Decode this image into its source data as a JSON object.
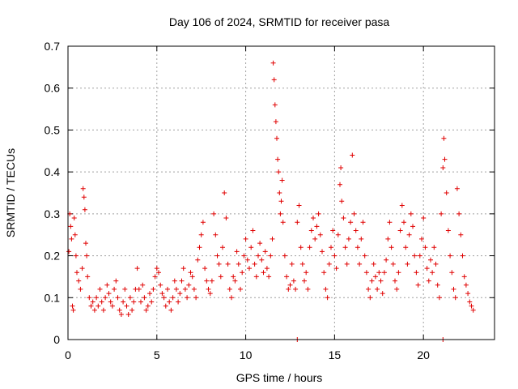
{
  "chart_data": {
    "type": "scatter",
    "title": "Day 106 of 2024, SRMTID for receiver pasa",
    "xlabel": "GPS time / hours",
    "ylabel": "SRMTID / TECUs",
    "xlim": [
      0,
      24
    ],
    "ylim": [
      0,
      0.7
    ],
    "grid": true,
    "x_ticks": [
      "0",
      "5",
      "10",
      "15",
      "20"
    ],
    "y_ticks": [
      "0",
      "0.1",
      "0.2",
      "0.3",
      "0.4",
      "0.5",
      "0.6",
      "0.7"
    ],
    "series": [
      {
        "name": "SRMTID",
        "color": "#e00000",
        "marker": "plus",
        "points": [
          [
            0.05,
            0.21
          ],
          [
            0.1,
            0.3
          ],
          [
            0.15,
            0.27
          ],
          [
            0.2,
            0.24
          ],
          [
            0.25,
            0.08
          ],
          [
            0.3,
            0.07
          ],
          [
            0.35,
            0.29
          ],
          [
            0.4,
            0.25
          ],
          [
            0.45,
            0.2
          ],
          [
            0.5,
            0.16
          ],
          [
            0.6,
            0.14
          ],
          [
            0.7,
            0.12
          ],
          [
            0.8,
            0.17
          ],
          [
            0.85,
            0.36
          ],
          [
            0.9,
            0.34
          ],
          [
            0.95,
            0.31
          ],
          [
            1.0,
            0.23
          ],
          [
            1.05,
            0.2
          ],
          [
            1.1,
            0.15
          ],
          [
            1.2,
            0.1
          ],
          [
            1.3,
            0.08
          ],
          [
            1.4,
            0.09
          ],
          [
            1.5,
            0.07
          ],
          [
            1.6,
            0.1
          ],
          [
            1.7,
            0.08
          ],
          [
            1.8,
            0.12
          ],
          [
            1.9,
            0.09
          ],
          [
            2.0,
            0.07
          ],
          [
            2.1,
            0.1
          ],
          [
            2.2,
            0.13
          ],
          [
            2.3,
            0.11
          ],
          [
            2.4,
            0.09
          ],
          [
            2.5,
            0.08
          ],
          [
            2.6,
            0.12
          ],
          [
            2.7,
            0.14
          ],
          [
            2.8,
            0.1
          ],
          [
            2.9,
            0.07
          ],
          [
            3.0,
            0.06
          ],
          [
            3.1,
            0.09
          ],
          [
            3.2,
            0.12
          ],
          [
            3.3,
            0.08
          ],
          [
            3.4,
            0.06
          ],
          [
            3.5,
            0.1
          ],
          [
            3.6,
            0.07
          ],
          [
            3.7,
            0.09
          ],
          [
            3.8,
            0.12
          ],
          [
            3.9,
            0.17
          ],
          [
            4.0,
            0.12
          ],
          [
            4.1,
            0.09
          ],
          [
            4.2,
            0.13
          ],
          [
            4.3,
            0.1
          ],
          [
            4.4,
            0.07
          ],
          [
            4.5,
            0.08
          ],
          [
            4.6,
            0.11
          ],
          [
            4.7,
            0.09
          ],
          [
            4.8,
            0.12
          ],
          [
            4.9,
            0.15
          ],
          [
            5.0,
            0.17
          ],
          [
            5.1,
            0.16
          ],
          [
            5.2,
            0.13
          ],
          [
            5.3,
            0.11
          ],
          [
            5.4,
            0.1
          ],
          [
            5.5,
            0.08
          ],
          [
            5.6,
            0.12
          ],
          [
            5.7,
            0.09
          ],
          [
            5.8,
            0.07
          ],
          [
            5.9,
            0.1
          ],
          [
            6.0,
            0.14
          ],
          [
            6.1,
            0.12
          ],
          [
            6.2,
            0.09
          ],
          [
            6.3,
            0.11
          ],
          [
            6.4,
            0.14
          ],
          [
            6.5,
            0.17
          ],
          [
            6.6,
            0.12
          ],
          [
            6.7,
            0.1
          ],
          [
            6.8,
            0.13
          ],
          [
            6.9,
            0.16
          ],
          [
            7.0,
            0.15
          ],
          [
            7.1,
            0.12
          ],
          [
            7.2,
            0.1
          ],
          [
            7.3,
            0.19
          ],
          [
            7.4,
            0.22
          ],
          [
            7.5,
            0.25
          ],
          [
            7.6,
            0.28
          ],
          [
            7.7,
            0.17
          ],
          [
            7.8,
            0.14
          ],
          [
            7.9,
            0.12
          ],
          [
            8.0,
            0.11
          ],
          [
            8.1,
            0.14
          ],
          [
            8.2,
            0.3
          ],
          [
            8.3,
            0.25
          ],
          [
            8.4,
            0.2
          ],
          [
            8.5,
            0.18
          ],
          [
            8.6,
            0.15
          ],
          [
            8.7,
            0.22
          ],
          [
            8.8,
            0.35
          ],
          [
            8.9,
            0.29
          ],
          [
            9.0,
            0.18
          ],
          [
            9.1,
            0.12
          ],
          [
            9.2,
            0.1
          ],
          [
            9.3,
            0.15
          ],
          [
            9.4,
            0.14
          ],
          [
            9.5,
            0.21
          ],
          [
            9.6,
            0.18
          ],
          [
            9.7,
            0.12
          ],
          [
            9.8,
            0.16
          ],
          [
            9.9,
            0.2
          ],
          [
            10.0,
            0.24
          ],
          [
            10.1,
            0.19
          ],
          [
            10.2,
            0.17
          ],
          [
            10.3,
            0.22
          ],
          [
            10.4,
            0.26
          ],
          [
            10.5,
            0.18
          ],
          [
            10.6,
            0.15
          ],
          [
            10.7,
            0.2
          ],
          [
            10.8,
            0.23
          ],
          [
            10.9,
            0.19
          ],
          [
            11.0,
            0.16
          ],
          [
            11.1,
            0.21
          ],
          [
            11.2,
            0.17
          ],
          [
            11.3,
            0.15
          ],
          [
            11.4,
            0.2
          ],
          [
            11.5,
            0.24
          ],
          [
            11.55,
            0.66
          ],
          [
            11.6,
            0.62
          ],
          [
            11.65,
            0.56
          ],
          [
            11.7,
            0.52
          ],
          [
            11.75,
            0.48
          ],
          [
            11.8,
            0.43
          ],
          [
            11.85,
            0.4
          ],
          [
            11.9,
            0.35
          ],
          [
            11.95,
            0.3
          ],
          [
            12.0,
            0.33
          ],
          [
            12.05,
            0.38
          ],
          [
            12.1,
            0.28
          ],
          [
            12.2,
            0.2
          ],
          [
            12.3,
            0.15
          ],
          [
            12.4,
            0.12
          ],
          [
            12.5,
            0.13
          ],
          [
            12.6,
            0.18
          ],
          [
            12.7,
            0.14
          ],
          [
            12.8,
            0.12
          ],
          [
            12.9,
            0.28
          ],
          [
            13.0,
            0.32
          ],
          [
            13.1,
            0.22
          ],
          [
            13.2,
            0.18
          ],
          [
            13.3,
            0.14
          ],
          [
            13.4,
            0.16
          ],
          [
            13.5,
            0.12
          ],
          [
            13.6,
            0.22
          ],
          [
            13.7,
            0.26
          ],
          [
            13.8,
            0.29
          ],
          [
            13.9,
            0.24
          ],
          [
            14.0,
            0.27
          ],
          [
            14.1,
            0.3
          ],
          [
            14.2,
            0.25
          ],
          [
            14.3,
            0.21
          ],
          [
            14.4,
            0.16
          ],
          [
            14.5,
            0.12
          ],
          [
            14.6,
            0.1
          ],
          [
            14.7,
            0.18
          ],
          [
            14.8,
            0.22
          ],
          [
            14.9,
            0.26
          ],
          [
            15.0,
            0.2
          ],
          [
            15.1,
            0.17
          ],
          [
            15.2,
            0.25
          ],
          [
            15.3,
            0.37
          ],
          [
            15.35,
            0.41
          ],
          [
            15.4,
            0.33
          ],
          [
            15.5,
            0.29
          ],
          [
            15.6,
            0.22
          ],
          [
            15.7,
            0.18
          ],
          [
            15.8,
            0.24
          ],
          [
            15.9,
            0.28
          ],
          [
            16.0,
            0.44
          ],
          [
            16.1,
            0.3
          ],
          [
            16.2,
            0.26
          ],
          [
            16.3,
            0.22
          ],
          [
            16.4,
            0.18
          ],
          [
            16.5,
            0.24
          ],
          [
            16.6,
            0.28
          ],
          [
            16.7,
            0.2
          ],
          [
            16.8,
            0.16
          ],
          [
            16.9,
            0.12
          ],
          [
            17.0,
            0.1
          ],
          [
            17.1,
            0.14
          ],
          [
            17.2,
            0.18
          ],
          [
            17.3,
            0.15
          ],
          [
            17.4,
            0.12
          ],
          [
            17.5,
            0.16
          ],
          [
            17.6,
            0.14
          ],
          [
            17.7,
            0.11
          ],
          [
            17.8,
            0.16
          ],
          [
            17.9,
            0.19
          ],
          [
            18.0,
            0.24
          ],
          [
            18.1,
            0.28
          ],
          [
            18.2,
            0.22
          ],
          [
            18.3,
            0.18
          ],
          [
            18.4,
            0.14
          ],
          [
            18.5,
            0.12
          ],
          [
            18.6,
            0.16
          ],
          [
            18.7,
            0.26
          ],
          [
            18.8,
            0.32
          ],
          [
            18.9,
            0.28
          ],
          [
            19.0,
            0.22
          ],
          [
            19.1,
            0.18
          ],
          [
            19.2,
            0.25
          ],
          [
            19.3,
            0.3
          ],
          [
            19.4,
            0.27
          ],
          [
            19.5,
            0.2
          ],
          [
            19.6,
            0.16
          ],
          [
            19.7,
            0.13
          ],
          [
            19.8,
            0.2
          ],
          [
            19.9,
            0.24
          ],
          [
            20.0,
            0.29
          ],
          [
            20.1,
            0.22
          ],
          [
            20.2,
            0.17
          ],
          [
            20.3,
            0.14
          ],
          [
            20.4,
            0.19
          ],
          [
            20.5,
            0.16
          ],
          [
            20.6,
            0.22
          ],
          [
            20.7,
            0.18
          ],
          [
            20.8,
            0.13
          ],
          [
            20.9,
            0.1
          ],
          [
            21.0,
            0.3
          ],
          [
            21.1,
            0.41
          ],
          [
            21.15,
            0.48
          ],
          [
            21.2,
            0.43
          ],
          [
            21.3,
            0.35
          ],
          [
            21.4,
            0.26
          ],
          [
            21.5,
            0.2
          ],
          [
            21.6,
            0.16
          ],
          [
            21.7,
            0.12
          ],
          [
            21.8,
            0.1
          ],
          [
            21.9,
            0.36
          ],
          [
            22.0,
            0.3
          ],
          [
            22.1,
            0.25
          ],
          [
            22.2,
            0.2
          ],
          [
            22.3,
            0.15
          ],
          [
            22.4,
            0.13
          ],
          [
            22.5,
            0.11
          ],
          [
            22.6,
            0.09
          ],
          [
            22.7,
            0.08
          ],
          [
            22.8,
            0.07
          ],
          [
            12.9,
            0.0
          ],
          [
            21.1,
            0.0
          ]
        ]
      }
    ]
  }
}
